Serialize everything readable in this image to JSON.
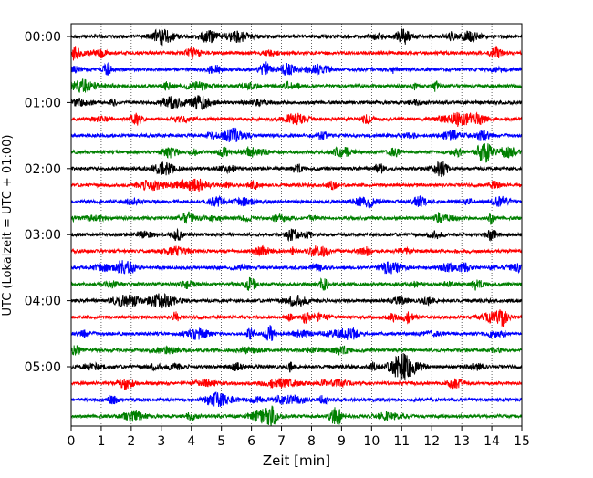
{
  "chart_data": {
    "type": "line",
    "title": "",
    "xlabel": "Zeit  [min]",
    "ylabel": "UTC (Lokalzeit = UTC + 01:00)",
    "xlim": [
      0,
      15
    ],
    "x_ticks": [
      0,
      1,
      2,
      3,
      4,
      5,
      6,
      7,
      8,
      9,
      10,
      11,
      12,
      13,
      14,
      15
    ],
    "x_tick_labels": [
      "0",
      "1",
      "2",
      "3",
      "4",
      "5",
      "6",
      "7",
      "8",
      "9",
      "10",
      "11",
      "12",
      "13",
      "14",
      "15"
    ],
    "grid": "vertical dotted at each minute",
    "legend": "none",
    "trace_interval_minutes": 15,
    "trace_colors_cycle": [
      "#000000",
      "#ff0000",
      "#0000ff",
      "#008000"
    ],
    "y_tick_labels": [
      {
        "label": "00:00",
        "trace_index": 0
      },
      {
        "label": "01:00",
        "trace_index": 4
      },
      {
        "label": "02:00",
        "trace_index": 8
      },
      {
        "label": "03:00",
        "trace_index": 12
      },
      {
        "label": "04:00",
        "trace_index": 16
      },
      {
        "label": "05:00",
        "trace_index": 20
      }
    ],
    "series": [
      {
        "start": "00:00",
        "color": "#000000"
      },
      {
        "start": "00:15",
        "color": "#ff0000"
      },
      {
        "start": "00:30",
        "color": "#0000ff"
      },
      {
        "start": "00:45",
        "color": "#008000"
      },
      {
        "start": "01:00",
        "color": "#000000"
      },
      {
        "start": "01:15",
        "color": "#ff0000"
      },
      {
        "start": "01:30",
        "color": "#0000ff"
      },
      {
        "start": "01:45",
        "color": "#008000"
      },
      {
        "start": "02:00",
        "color": "#000000"
      },
      {
        "start": "02:15",
        "color": "#ff0000"
      },
      {
        "start": "02:30",
        "color": "#0000ff"
      },
      {
        "start": "02:45",
        "color": "#008000"
      },
      {
        "start": "03:00",
        "color": "#000000"
      },
      {
        "start": "03:15",
        "color": "#ff0000"
      },
      {
        "start": "03:30",
        "color": "#0000ff"
      },
      {
        "start": "03:45",
        "color": "#008000"
      },
      {
        "start": "04:00",
        "color": "#000000"
      },
      {
        "start": "04:15",
        "color": "#ff0000"
      },
      {
        "start": "04:30",
        "color": "#0000ff"
      },
      {
        "start": "04:45",
        "color": "#008000"
      },
      {
        "start": "05:00",
        "color": "#000000"
      },
      {
        "start": "05:15",
        "color": "#ff0000"
      },
      {
        "start": "05:30",
        "color": "#0000ff"
      },
      {
        "start": "05:45",
        "color": "#008000"
      }
    ]
  }
}
